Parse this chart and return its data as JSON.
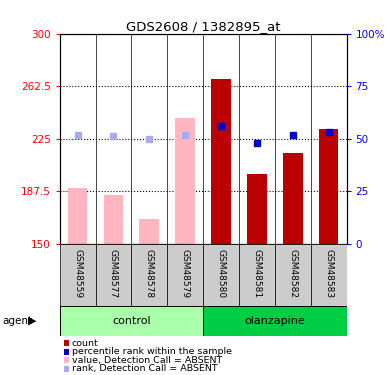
{
  "title": "GDS2608 / 1382895_at",
  "samples": [
    "GSM48559",
    "GSM48577",
    "GSM48578",
    "GSM48579",
    "GSM48580",
    "GSM48581",
    "GSM48582",
    "GSM48583"
  ],
  "absent_value_bars": [
    190,
    185,
    168,
    240,
    null,
    null,
    null,
    null
  ],
  "absent_rank_markers": [
    228,
    227,
    225,
    228,
    null,
    null,
    null,
    null
  ],
  "present_value_bars": [
    null,
    null,
    null,
    null,
    268,
    200,
    215,
    232
  ],
  "present_rank_markers": [
    null,
    null,
    null,
    null,
    234,
    222,
    228,
    230
  ],
  "ymin": 150,
  "ymax": 300,
  "yticks": [
    150,
    187.5,
    225,
    262.5,
    300
  ],
  "ytick_labels": [
    "150",
    "187.5",
    "225",
    "262.5",
    "300"
  ],
  "y2min": 0,
  "y2max": 100,
  "y2ticks": [
    0,
    25,
    50,
    75,
    100
  ],
  "y2tick_labels": [
    "0",
    "25",
    "50",
    "75",
    "100%"
  ],
  "color_absent_bar": "#FFB6C1",
  "color_absent_rank": "#AAAAEE",
  "color_present_bar": "#BB0000",
  "color_present_rank": "#0000CC",
  "bar_width": 0.55,
  "group_control_color": "#AAFFAA",
  "group_olanzapine_color": "#00CC44",
  "label_bg_color": "#CCCCCC",
  "legend_items": [
    {
      "label": "count",
      "color": "#BB0000"
    },
    {
      "label": "percentile rank within the sample",
      "color": "#0000CC"
    },
    {
      "label": "value, Detection Call = ABSENT",
      "color": "#FFB6C1"
    },
    {
      "label": "rank, Detection Call = ABSENT",
      "color": "#AAAAEE"
    }
  ]
}
